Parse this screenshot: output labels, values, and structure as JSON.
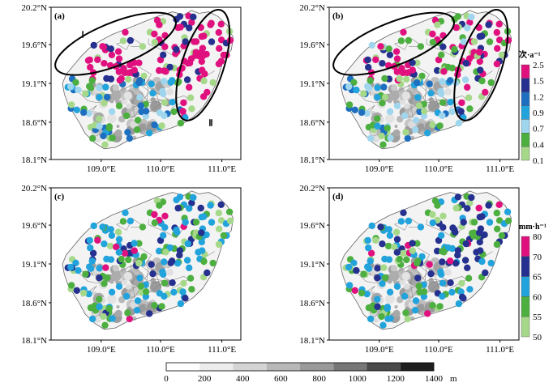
{
  "panels": [
    {
      "id": "a",
      "label": "(a)",
      "legend": "rate"
    },
    {
      "id": "b",
      "label": "(b)",
      "legend": "rate"
    },
    {
      "id": "c",
      "label": "(c)",
      "legend": "intensity"
    },
    {
      "id": "d",
      "label": "(d)",
      "legend": "intensity"
    }
  ],
  "axes": {
    "y_ticks": [
      "20.2°N",
      "19.6°N",
      "19.1°N",
      "18.6°N",
      "18.1°N"
    ],
    "x_ticks": [
      "109.0°E",
      "110.0°E",
      "111.0°E"
    ]
  },
  "region_labels": {
    "I": "Ⅰ",
    "II": "Ⅱ"
  },
  "legend_rate": {
    "unit": "次·a⁻¹",
    "ticks": [
      "2.5",
      "1.5",
      "1.2",
      "0.9",
      "0.7",
      "0.4",
      "0.1"
    ],
    "colors": [
      "#e0117f",
      "#25308f",
      "#1f6fc0",
      "#22a3dc",
      "#9fd6ee",
      "#4caf40",
      "#a6d88a"
    ]
  },
  "legend_intensity": {
    "unit": "mm·h⁻¹",
    "ticks": [
      "80",
      "70",
      "65",
      "60",
      "55",
      "50"
    ],
    "colors": [
      "#e0117f",
      "#25308f",
      "#22a3dc",
      "#4caf40",
      "#a6d88a"
    ]
  },
  "elevation_bar": {
    "ticks": [
      "0",
      "200",
      "400",
      "600",
      "800",
      "1000",
      "1200",
      "1400"
    ],
    "unit": "m",
    "colors": [
      "#ffffff",
      "#ececec",
      "#d4d4d4",
      "#b8b8b8",
      "#9a9a9a",
      "#777777",
      "#4a4a4a",
      "#1e1e1e"
    ]
  }
}
